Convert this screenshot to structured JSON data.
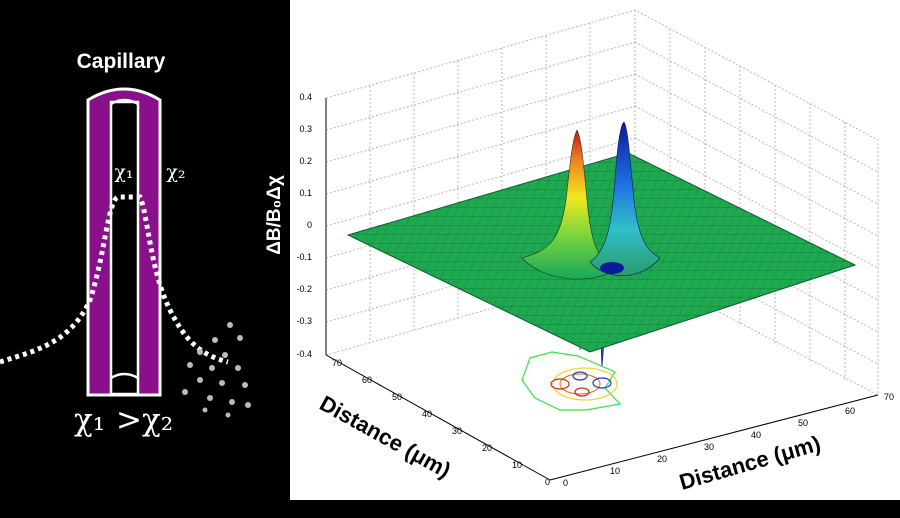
{
  "diagram": {
    "capillary_label": "Capillary",
    "chi1_label": "χ₁",
    "chi2_label": "χ₂",
    "inequality": {
      "chi1": "χ₁",
      "op": ">",
      "chi2": "χ₂"
    }
  },
  "plot": {
    "type": "surface",
    "zlabel": "ΔB/B₀Δχ",
    "xlabel": "Distance (μm)",
    "ylabel": "Distance (μm)",
    "z_ticks": [
      "0.4",
      "0.3",
      "0.2",
      "0.1",
      "0",
      "-0.1",
      "-0.2",
      "-0.3",
      "-0.4"
    ],
    "x_ticks": [
      "0",
      "10",
      "20",
      "30",
      "40",
      "50",
      "60",
      "70"
    ],
    "y_ticks": [
      "0",
      "10",
      "20",
      "30",
      "40",
      "50",
      "60",
      "70"
    ],
    "colormap": "jet",
    "grid": true
  }
}
